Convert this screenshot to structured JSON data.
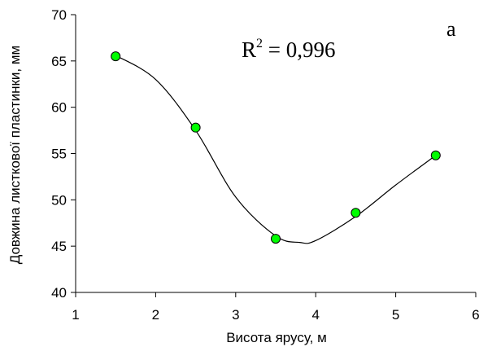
{
  "chart_data": {
    "type": "scatter",
    "xlabel": "Висота ярусу, м",
    "ylabel": "Довжина листкової пластинки, мм",
    "xlim": [
      1,
      6
    ],
    "ylim": [
      40,
      70
    ],
    "xticks": [
      "1",
      "2",
      "3",
      "4",
      "5",
      "6"
    ],
    "yticks": [
      "40",
      "45",
      "50",
      "55",
      "60",
      "65",
      "70"
    ],
    "panel_label": "a",
    "r2_text": "R",
    "r2_sup": "2",
    "r2_value": " = 0,996",
    "grid": false,
    "legend": "none",
    "marker_color": "#00ff00",
    "curve_color": "#000000",
    "points": [
      {
        "x": 1.5,
        "y": 65.5
      },
      {
        "x": 2.5,
        "y": 57.8
      },
      {
        "x": 3.5,
        "y": 45.8
      },
      {
        "x": 4.5,
        "y": 48.6
      },
      {
        "x": 5.5,
        "y": 54.8
      }
    ],
    "trend_curve": [
      {
        "x": 1.5,
        "y": 65.6
      },
      {
        "x": 2.0,
        "y": 63.0
      },
      {
        "x": 2.5,
        "y": 57.5
      },
      {
        "x": 3.0,
        "y": 50.3
      },
      {
        "x": 3.5,
        "y": 46.1
      },
      {
        "x": 3.8,
        "y": 45.4
      },
      {
        "x": 4.0,
        "y": 45.6
      },
      {
        "x": 4.5,
        "y": 48.2
      },
      {
        "x": 5.0,
        "y": 51.6
      },
      {
        "x": 5.5,
        "y": 54.8
      }
    ]
  }
}
